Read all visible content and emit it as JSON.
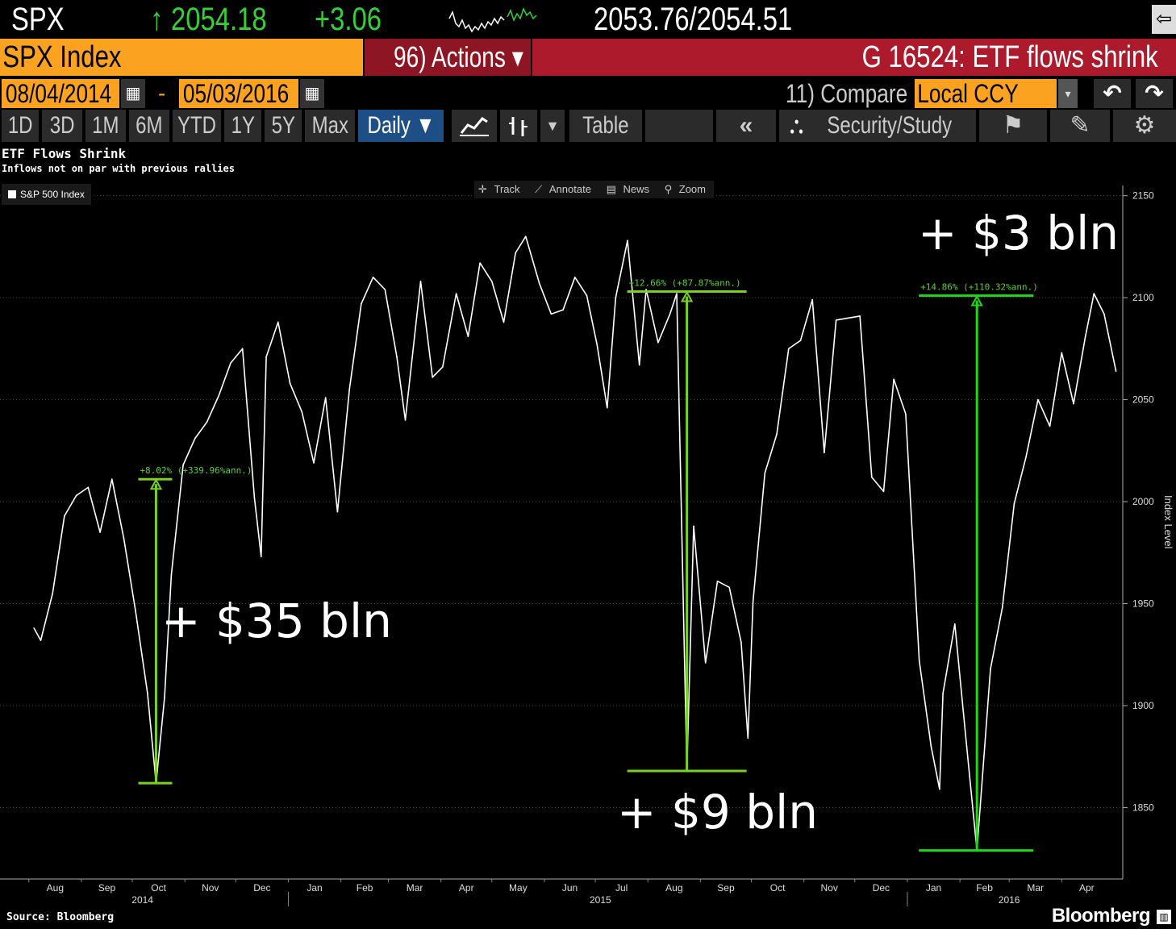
{
  "ticker": {
    "symbol": "SPX",
    "arrow": "↑",
    "price": "2054.18",
    "change": "+3.06",
    "bid_ask": "2053.76/2054.51"
  },
  "header": {
    "security": "SPX Index",
    "actions": "96) Actions ▾",
    "title": "G 16524: ETF flows shrink"
  },
  "range": {
    "start": "08/04/2014",
    "dash": "-",
    "end": "05/03/2016",
    "compare": "11) Compare",
    "currency": "Local CCY"
  },
  "tabs": [
    "1D",
    "3D",
    "1M",
    "6M",
    "YTD",
    "1Y",
    "5Y",
    "Max"
  ],
  "toolbar_row": {
    "frequency": "Daily ▼",
    "table": "Table",
    "security_study": "Security/Study"
  },
  "chart_tools": [
    "Track",
    "Annotate",
    "News",
    "Zoom"
  ],
  "legend_label": "S&P 500 Index",
  "source": "Source: Bloomberg",
  "brand": "Bloomberg",
  "colors": {
    "orange": "#fba321",
    "green": "#34d134",
    "annotation": "#5bd12a",
    "line": "#ffffff"
  },
  "chart_data": {
    "type": "line",
    "title": "ETF Flows Shrink",
    "subtitle": "Inflows not on par with previous rallies",
    "ylabel": "Index Level",
    "ylim": [
      1815,
      2155
    ],
    "y_ticks": [
      2150,
      2100,
      2050,
      2000,
      1950,
      1900,
      1850
    ],
    "x_month_labels": [
      "Aug",
      "Sep",
      "Oct",
      "Nov",
      "Dec",
      "Jan",
      "Feb",
      "Mar",
      "Apr",
      "May",
      "Jun",
      "Jul",
      "Aug",
      "Sep",
      "Oct",
      "Nov",
      "Dec",
      "Jan",
      "Feb",
      "Mar",
      "Apr"
    ],
    "x_year_labels": [
      "2014",
      "2015",
      "2016"
    ],
    "series": [
      {
        "name": "S&P 500 Index",
        "x": [
          "2014-08-04",
          "2014-08-08",
          "2014-08-15",
          "2014-08-22",
          "2014-08-29",
          "2014-09-05",
          "2014-09-12",
          "2014-09-19",
          "2014-09-26",
          "2014-10-03",
          "2014-10-10",
          "2014-10-15",
          "2014-10-20",
          "2014-10-24",
          "2014-10-31",
          "2014-11-07",
          "2014-11-14",
          "2014-11-21",
          "2014-11-28",
          "2014-12-05",
          "2014-12-12",
          "2014-12-16",
          "2014-12-19",
          "2014-12-26",
          "2015-01-02",
          "2015-01-09",
          "2015-01-16",
          "2015-01-23",
          "2015-01-30",
          "2015-02-06",
          "2015-02-13",
          "2015-02-20",
          "2015-02-27",
          "2015-03-06",
          "2015-03-11",
          "2015-03-20",
          "2015-03-27",
          "2015-04-02",
          "2015-04-10",
          "2015-04-17",
          "2015-04-24",
          "2015-05-01",
          "2015-05-08",
          "2015-05-15",
          "2015-05-21",
          "2015-05-29",
          "2015-06-05",
          "2015-06-12",
          "2015-06-19",
          "2015-06-26",
          "2015-07-02",
          "2015-07-08",
          "2015-07-13",
          "2015-07-20",
          "2015-07-27",
          "2015-07-31",
          "2015-08-07",
          "2015-08-14",
          "2015-08-18",
          "2015-08-24",
          "2015-08-28",
          "2015-09-04",
          "2015-09-11",
          "2015-09-18",
          "2015-09-25",
          "2015-09-29",
          "2015-10-02",
          "2015-10-09",
          "2015-10-16",
          "2015-10-23",
          "2015-10-30",
          "2015-11-06",
          "2015-11-13",
          "2015-11-20",
          "2015-11-27",
          "2015-12-04",
          "2015-12-11",
          "2015-12-18",
          "2015-12-24",
          "2015-12-31",
          "2016-01-08",
          "2016-01-15",
          "2016-01-20",
          "2016-01-22",
          "2016-01-29",
          "2016-02-05",
          "2016-02-11",
          "2016-02-19",
          "2016-02-26",
          "2016-03-04",
          "2016-03-11",
          "2016-03-18",
          "2016-03-25",
          "2016-04-01",
          "2016-04-08",
          "2016-04-15",
          "2016-04-20",
          "2016-04-26",
          "2016-05-03"
        ],
        "values": [
          1938,
          1932,
          1955,
          1993,
          2003,
          2007,
          1985,
          2011,
          1982,
          1946,
          1906,
          1862,
          1904,
          1964,
          2018,
          2031,
          2039,
          2052,
          2068,
          2075,
          2002,
          1973,
          2071,
          2088,
          2058,
          2044,
          2019,
          2051,
          1995,
          2055,
          2097,
          2110,
          2104,
          2071,
          2040,
          2108,
          2061,
          2066,
          2102,
          2081,
          2117,
          2108,
          2088,
          2122,
          2130,
          2107,
          2092,
          2094,
          2110,
          2101,
          2077,
          2046,
          2100,
          2128,
          2067,
          2104,
          2078,
          2092,
          2102,
          1868,
          1988,
          1921,
          1961,
          1958,
          1931,
          1884,
          1951,
          2014,
          2033,
          2075,
          2079,
          2099,
          2024,
          2089,
          2090,
          2091,
          2012,
          2005,
          2060,
          2043,
          1922,
          1880,
          1859,
          1906,
          1940,
          1880,
          1829,
          1918,
          1948,
          1999,
          2022,
          2050,
          2037,
          2073,
          2048,
          2081,
          2102,
          2092,
          2064
        ]
      }
    ],
    "annotations": [
      {
        "label": "+8.02% (+339.96%ann.)",
        "from_date": "2014-10-15",
        "from_value": 1862,
        "to_value": 2011,
        "flow_text": "+ $35 bln"
      },
      {
        "label": "+12.66% (+87.87%ann.)",
        "from_date": "2015-08-24",
        "from_value": 1868,
        "to_value": 2103,
        "flow_text": "+ $9 bln"
      },
      {
        "label": "+14.86% (+110.32%ann.)",
        "from_date": "2016-02-11",
        "from_value": 1829,
        "to_value": 2101,
        "flow_text": "+ $3 bln"
      }
    ]
  }
}
